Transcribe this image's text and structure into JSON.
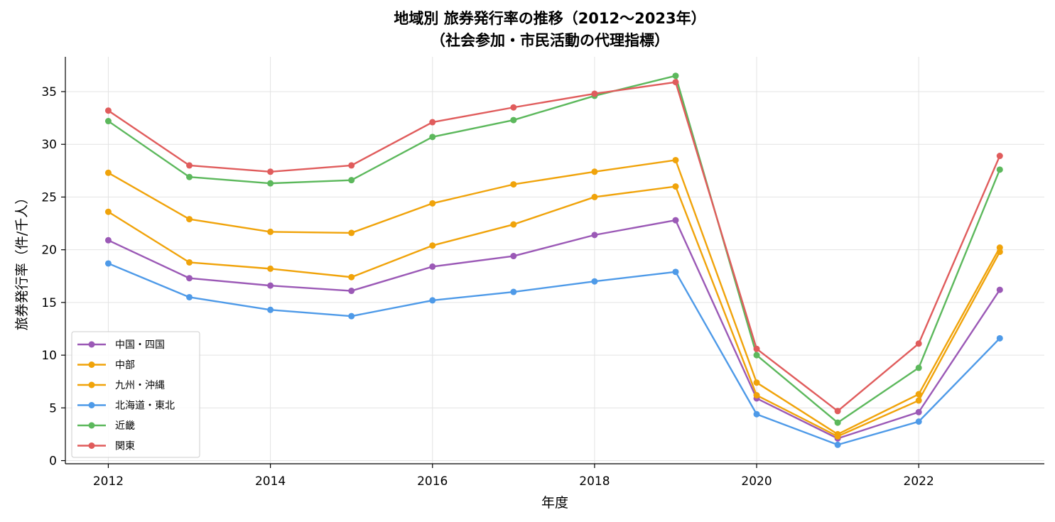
{
  "chart_data": {
    "type": "line",
    "title_line1": "地域別 旅券発行率の推移（2012〜2023年）",
    "title_line2": "（社会参加・市民活動の代理指標）",
    "xlabel": "年度",
    "ylabel": "旅券発行率（件/千人）",
    "x": [
      2012,
      2013,
      2014,
      2015,
      2016,
      2017,
      2018,
      2019,
      2020,
      2021,
      2022,
      2023
    ],
    "xlim": [
      2011.47,
      2023.55
    ],
    "ylim": [
      -0.3,
      38.3
    ],
    "xticks": [
      2012,
      2014,
      2016,
      2018,
      2020,
      2022
    ],
    "yticks": [
      0,
      5,
      10,
      15,
      20,
      25,
      30,
      35
    ],
    "xtick_labels": [
      "2012",
      "2014",
      "2016",
      "2018",
      "2020",
      "2022"
    ],
    "ytick_labels": [
      "0",
      "5",
      "10",
      "15",
      "20",
      "25",
      "30",
      "35"
    ],
    "grid": true,
    "legend_position": "lower-left",
    "series": [
      {
        "name": "中国・四国",
        "color": "#9b59b6",
        "values": [
          20.9,
          17.3,
          16.6,
          16.1,
          18.4,
          19.4,
          21.4,
          22.8,
          5.9,
          2.1,
          4.6,
          16.2
        ]
      },
      {
        "name": "中部",
        "color": "#f0a30a",
        "values": [
          27.3,
          22.9,
          21.7,
          21.6,
          24.4,
          26.2,
          27.4,
          28.5,
          7.4,
          2.5,
          6.3,
          20.2
        ]
      },
      {
        "name": "九州・沖縄",
        "color": "#f0a30a",
        "values": [
          23.6,
          18.8,
          18.2,
          17.4,
          20.4,
          22.4,
          25.0,
          26.0,
          6.2,
          2.3,
          5.7,
          19.8
        ]
      },
      {
        "name": "北海道・東北",
        "color": "#4e9ae8",
        "values": [
          18.7,
          15.5,
          14.3,
          13.7,
          15.2,
          16.0,
          17.0,
          17.9,
          4.4,
          1.5,
          3.7,
          11.6
        ]
      },
      {
        "name": "近畿",
        "color": "#5cb85c",
        "values": [
          32.2,
          26.9,
          26.3,
          26.6,
          30.7,
          32.3,
          34.6,
          36.5,
          10.0,
          3.6,
          8.8,
          27.6
        ]
      },
      {
        "name": "関東",
        "color": "#e05c5c",
        "values": [
          33.2,
          28.0,
          27.4,
          28.0,
          32.1,
          33.5,
          34.8,
          35.9,
          10.6,
          4.7,
          11.1,
          28.9
        ]
      }
    ]
  }
}
